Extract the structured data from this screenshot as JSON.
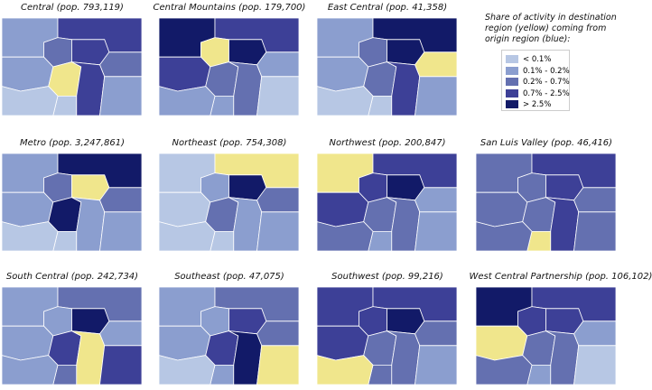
{
  "legend": {
    "title": "Share of activity in destination region (yellow) coming from origin region (blue):",
    "items": [
      {
        "label": "< 0.1%",
        "color": "#b7c7e4"
      },
      {
        "label": "0.1% - 0.2%",
        "color": "#8b9ecf"
      },
      {
        "label": "0.2% - 0.7%",
        "color": "#6470b0"
      },
      {
        "label": "0.7% - 2.5%",
        "color": "#3d4097"
      },
      {
        "label": "> 2.5%",
        "color": "#121a68"
      }
    ]
  },
  "destination_color": "#f0e68c",
  "panels": [
    {
      "title": "Central (pop. 793,119)",
      "classes": [
        1,
        3,
        2,
        3,
        2,
        1,
        null,
        3,
        1,
        0,
        0
      ]
    },
    {
      "title": "Central Mountains (pop. 179,700)",
      "classes": [
        4,
        3,
        null,
        4,
        1,
        3,
        2,
        2,
        0,
        1,
        1
      ]
    },
    {
      "title": "East Central (pop. 41,358)",
      "classes": [
        1,
        4,
        2,
        4,
        null,
        1,
        2,
        3,
        1,
        0,
        0
      ]
    },
    {
      "title": "Metro (pop. 3,247,861)",
      "classes": [
        1,
        4,
        2,
        null,
        2,
        1,
        4,
        1,
        1,
        0,
        0
      ]
    },
    {
      "title": "Northeast (pop. 754,308)",
      "classes": [
        0,
        null,
        1,
        4,
        2,
        0,
        2,
        1,
        1,
        0,
        0
      ]
    },
    {
      "title": "Northwest (pop. 200,847)",
      "classes": [
        null,
        3,
        3,
        4,
        1,
        3,
        2,
        2,
        1,
        1,
        2
      ]
    },
    {
      "title": "San Luis Valley (pop. 46,416)",
      "classes": [
        2,
        3,
        2,
        3,
        2,
        2,
        2,
        3,
        2,
        null,
        2
      ]
    },
    {
      "title": "South Central (pop. 242,734)",
      "classes": [
        1,
        2,
        1,
        4,
        1,
        1,
        3,
        null,
        3,
        2,
        1
      ]
    },
    {
      "title": "Southeast (pop. 47,075)",
      "classes": [
        1,
        2,
        1,
        3,
        2,
        1,
        3,
        4,
        null,
        1,
        0
      ]
    },
    {
      "title": "Southwest (pop. 99,216)",
      "classes": [
        3,
        3,
        3,
        4,
        2,
        3,
        2,
        2,
        1,
        2,
        null
      ]
    },
    {
      "title": "West Central Partnership (pop. 106,102)",
      "classes": [
        4,
        3,
        3,
        3,
        1,
        null,
        2,
        2,
        0,
        1,
        2
      ]
    }
  ]
}
